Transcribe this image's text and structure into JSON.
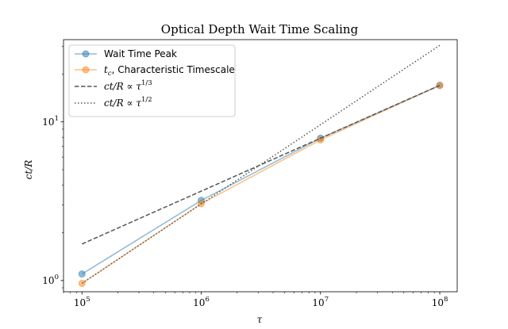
{
  "chart_data": {
    "type": "line",
    "title": "Optical Depth Wait Time Scaling",
    "xlabel": "τ",
    "ylabel": "ct/R",
    "xscale": "log",
    "yscale": "log",
    "xlim": [
      70000,
      140000000
    ],
    "ylim": [
      0.85,
      33
    ],
    "xticks": [
      {
        "value": 100000,
        "base": "10",
        "exp": "5"
      },
      {
        "value": 1000000,
        "base": "10",
        "exp": "6"
      },
      {
        "value": 10000000,
        "base": "10",
        "exp": "7"
      },
      {
        "value": 100000000,
        "base": "10",
        "exp": "8"
      }
    ],
    "yticks": [
      {
        "value": 1,
        "base": "10",
        "exp": "0"
      },
      {
        "value": 10,
        "base": "10",
        "exp": "1"
      }
    ],
    "legend_position": "top-left",
    "grid": false,
    "series": [
      {
        "name": "Wait Time Peak",
        "color": "#1f77b4",
        "style": "solid",
        "markers": true,
        "x": [
          100000,
          1000000,
          10000000,
          100000000
        ],
        "y": [
          1.1,
          3.2,
          7.9,
          17.0
        ]
      },
      {
        "name_math": "t",
        "name_sub": "c",
        "name_rest": ", Characteristic Timescale",
        "color": "#ff7f0e",
        "style": "solid",
        "markers": true,
        "x": [
          100000,
          1000000,
          10000000,
          100000000
        ],
        "y": [
          0.96,
          3.05,
          7.7,
          17.0
        ]
      },
      {
        "name_pre": "ct/R ∝ τ",
        "name_sup": "1/3",
        "color": "#555555",
        "style": "dashed",
        "markers": false,
        "x": [
          100000,
          1000000,
          10000000,
          100000000
        ],
        "y": [
          1.7,
          3.66,
          7.89,
          17.0
        ]
      },
      {
        "name_pre": "ct/R ∝ τ",
        "name_sup": "1/2",
        "color": "#555555",
        "style": "dotted",
        "markers": false,
        "x": [
          100000,
          1000000,
          10000000,
          100000000
        ],
        "y": [
          0.96,
          3.04,
          9.6,
          30.4
        ]
      }
    ]
  }
}
